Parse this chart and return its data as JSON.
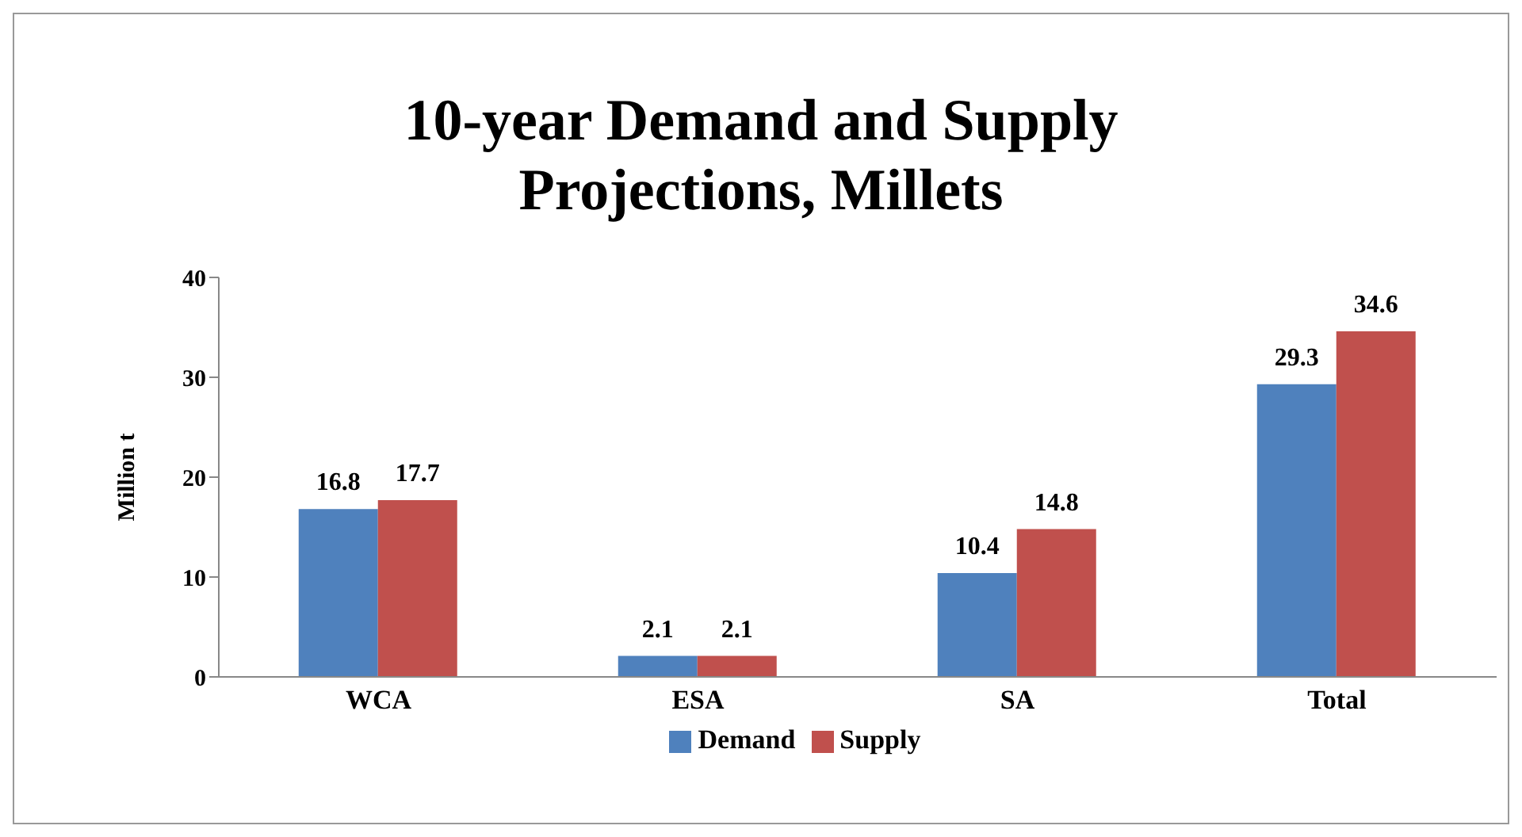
{
  "chart_data": {
    "type": "bar",
    "title": "10-year Demand and Supply Projections, Millets",
    "ylabel": "Million t",
    "categories": [
      "WCA",
      "ESA",
      "SA",
      "Total"
    ],
    "series": [
      {
        "name": "Demand",
        "color": "#4f81bd",
        "values": [
          16.8,
          2.1,
          10.4,
          29.3
        ]
      },
      {
        "name": "Supply",
        "color": "#c0504d",
        "values": [
          17.7,
          2.1,
          14.8,
          34.6
        ]
      }
    ],
    "ylim": [
      0,
      40
    ],
    "yticks": [
      0,
      10,
      20,
      30,
      40
    ],
    "grid": false,
    "legend": "bottom",
    "data_labels": true
  }
}
